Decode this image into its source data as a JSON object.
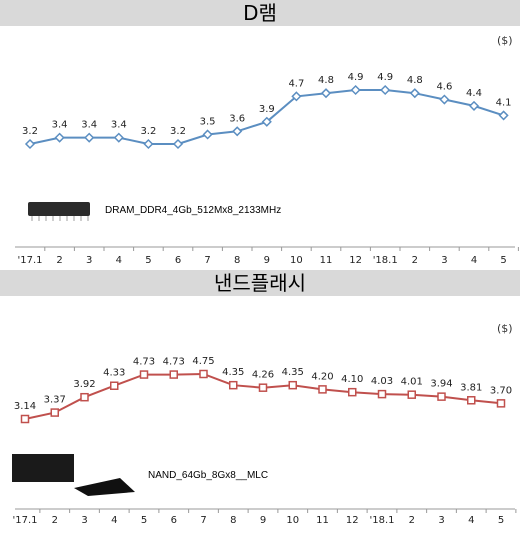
{
  "chart_data": [
    {
      "type": "line",
      "title": "D램",
      "unit": "($)",
      "categories": [
        "'17.1",
        "2",
        "3",
        "4",
        "5",
        "6",
        "7",
        "8",
        "9",
        "10",
        "11",
        "12",
        "'18.1",
        "2",
        "3",
        "4",
        "5"
      ],
      "series": [
        {
          "values": [
            3.2,
            3.4,
            3.4,
            3.4,
            3.2,
            3.2,
            3.5,
            3.6,
            3.9,
            4.7,
            4.8,
            4.9,
            4.9,
            4.8,
            4.6,
            4.4,
            4.1
          ]
        }
      ],
      "value_labels": [
        "3.2",
        "3.4",
        "3.4",
        "3.4",
        "3.2",
        "3.2",
        "3.5",
        "3.6",
        "3.9",
        "4.7",
        "4.8",
        "4.9",
        "4.9",
        "4.8",
        "4.6",
        "4.4",
        "4.1"
      ],
      "annotation": "DRAM_DDR4_4Gb_512Mx8_2133MHz",
      "color": "#5b8ec1",
      "marker": "diamond",
      "grid": false
    },
    {
      "type": "line",
      "title": "낸드플래시",
      "unit": "($)",
      "categories": [
        "'17.1",
        "2",
        "3",
        "4",
        "5",
        "6",
        "7",
        "8",
        "9",
        "10",
        "11",
        "12",
        "'18.1",
        "2",
        "3",
        "4",
        "5"
      ],
      "series": [
        {
          "values": [
            3.14,
            3.37,
            3.92,
            4.33,
            4.73,
            4.73,
            4.75,
            4.35,
            4.26,
            4.35,
            4.2,
            4.1,
            4.03,
            4.01,
            3.94,
            3.81,
            3.7
          ]
        }
      ],
      "value_labels": [
        "3.14",
        "3.37",
        "3.92",
        "4.33",
        "4.73",
        "4.73",
        "4.75",
        "4.35",
        "4.26",
        "4.35",
        "4.20",
        "4.10",
        "4.03",
        "4.01",
        "3.94",
        "3.81",
        "3.70"
      ],
      "annotation": "NAND_64Gb_8Gx8__MLC",
      "color": "#c0504d",
      "marker": "square",
      "grid": false
    }
  ]
}
